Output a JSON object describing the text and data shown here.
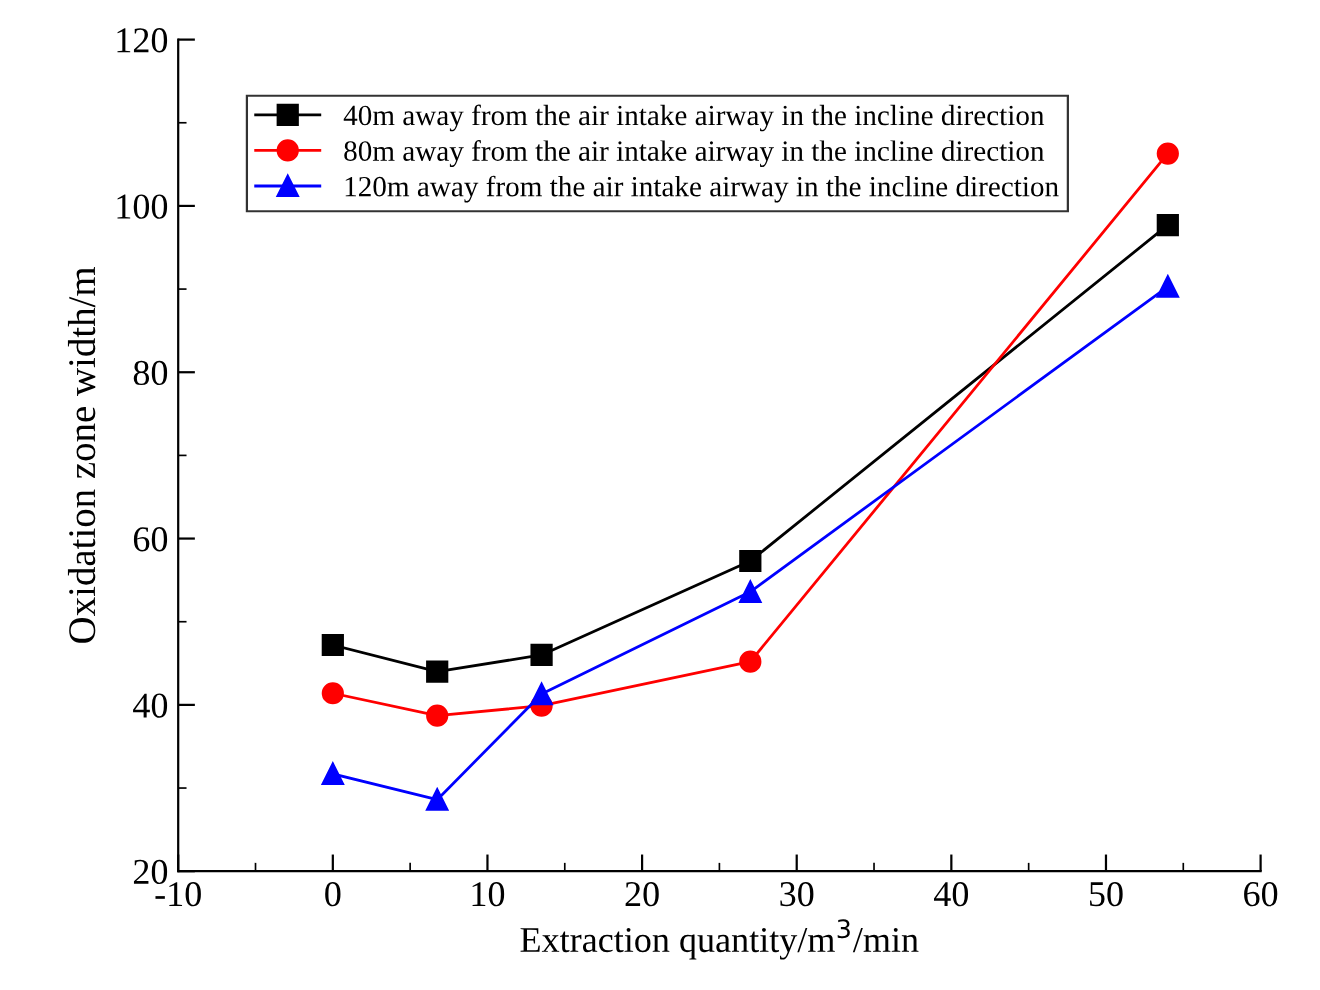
{
  "chart_data": {
    "type": "line",
    "xlabel": "Extraction quantity/m$^{3}$/min",
    "ylabel": "Oxidation zone width/m",
    "x": [
      0,
      6.75,
      13.5,
      27,
      54
    ],
    "series": [
      {
        "name": "40m away from the air intake airway in the incline direction",
        "color": "#000000",
        "marker": "square",
        "values": [
          47.2,
          44.0,
          46.0,
          57.3,
          97.7
        ]
      },
      {
        "name": "80m away from the air intake airway in the incline direction",
        "color": "#ff0000",
        "marker": "circle",
        "values": [
          41.4,
          38.7,
          39.9,
          45.2,
          106.3
        ]
      },
      {
        "name": "120m away from the air intake airway in the incline direction",
        "color": "#0000ff",
        "marker": "triangle",
        "values": [
          31.7,
          28.6,
          41.3,
          53.6,
          90.3
        ]
      }
    ],
    "xlim": [
      -10,
      60
    ],
    "xticks": [
      -10,
      0,
      10,
      20,
      30,
      40,
      50,
      60
    ],
    "ylim": [
      20,
      120
    ],
    "yticks": [
      20,
      40,
      60,
      80,
      100,
      120
    ],
    "grid": false,
    "legend": "top left",
    "line_style": "solid"
  }
}
